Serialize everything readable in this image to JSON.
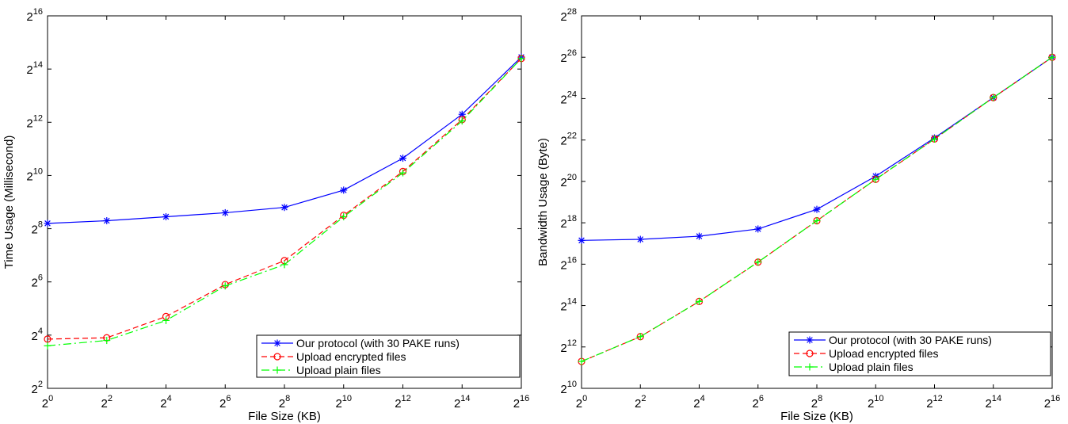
{
  "chart_data": [
    {
      "type": "line",
      "scale": "log2",
      "xlabel": "File Size (KB)",
      "ylabel": "Time Usage (Millisecond)",
      "xlim_exp": [
        0,
        16
      ],
      "ylim_exp": [
        2,
        16
      ],
      "x_exponents": [
        0,
        2,
        4,
        6,
        8,
        10,
        12,
        14,
        16
      ],
      "y_ticks_exp": [
        2,
        4,
        6,
        8,
        10,
        12,
        14,
        16
      ],
      "grid": false,
      "legend_placement": "bottom-right",
      "series": [
        {
          "name": "Our protocol (with 30 PAKE runs)",
          "color": "#0000ff",
          "marker": "asterisk",
          "line": "solid",
          "y_exp": [
            8.2,
            8.3,
            8.45,
            8.6,
            8.8,
            9.45,
            10.65,
            12.3,
            14.45
          ]
        },
        {
          "name": "Upload encrypted files",
          "color": "#ff0000",
          "marker": "circle",
          "line": "dashed",
          "y_exp": [
            3.85,
            3.9,
            4.7,
            5.9,
            6.8,
            8.5,
            10.15,
            12.1,
            14.4
          ]
        },
        {
          "name": "Upload plain files",
          "color": "#00ff00",
          "marker": "plus",
          "line": "dashdot",
          "y_exp": [
            3.6,
            3.8,
            4.55,
            5.85,
            6.65,
            8.45,
            10.1,
            12.05,
            14.4
          ]
        }
      ]
    },
    {
      "type": "line",
      "scale": "log2",
      "xlabel": "File Size (KB)",
      "ylabel": "Bandwidth Usage (Byte)",
      "xlim_exp": [
        0,
        16
      ],
      "ylim_exp": [
        10,
        28
      ],
      "x_exponents": [
        0,
        2,
        4,
        6,
        8,
        10,
        12,
        14,
        16
      ],
      "y_ticks_exp": [
        10,
        12,
        14,
        16,
        18,
        20,
        22,
        24,
        26,
        28
      ],
      "grid": false,
      "legend_placement": "bottom-right",
      "series": [
        {
          "name": "Our protocol (with 30 PAKE runs)",
          "color": "#0000ff",
          "marker": "asterisk",
          "line": "solid",
          "y_exp": [
            17.15,
            17.2,
            17.35,
            17.7,
            18.65,
            20.25,
            22.1,
            24.05,
            26.0
          ]
        },
        {
          "name": "Upload encrypted files",
          "color": "#ff0000",
          "marker": "circle",
          "line": "dashed",
          "y_exp": [
            11.3,
            12.5,
            14.2,
            16.1,
            18.1,
            20.1,
            22.05,
            24.05,
            26.0
          ]
        },
        {
          "name": "Upload plain files",
          "color": "#00ff00",
          "marker": "plus",
          "line": "dashdot",
          "y_exp": [
            11.3,
            12.5,
            14.2,
            16.1,
            18.1,
            20.1,
            22.05,
            24.05,
            26.0
          ]
        }
      ]
    }
  ]
}
